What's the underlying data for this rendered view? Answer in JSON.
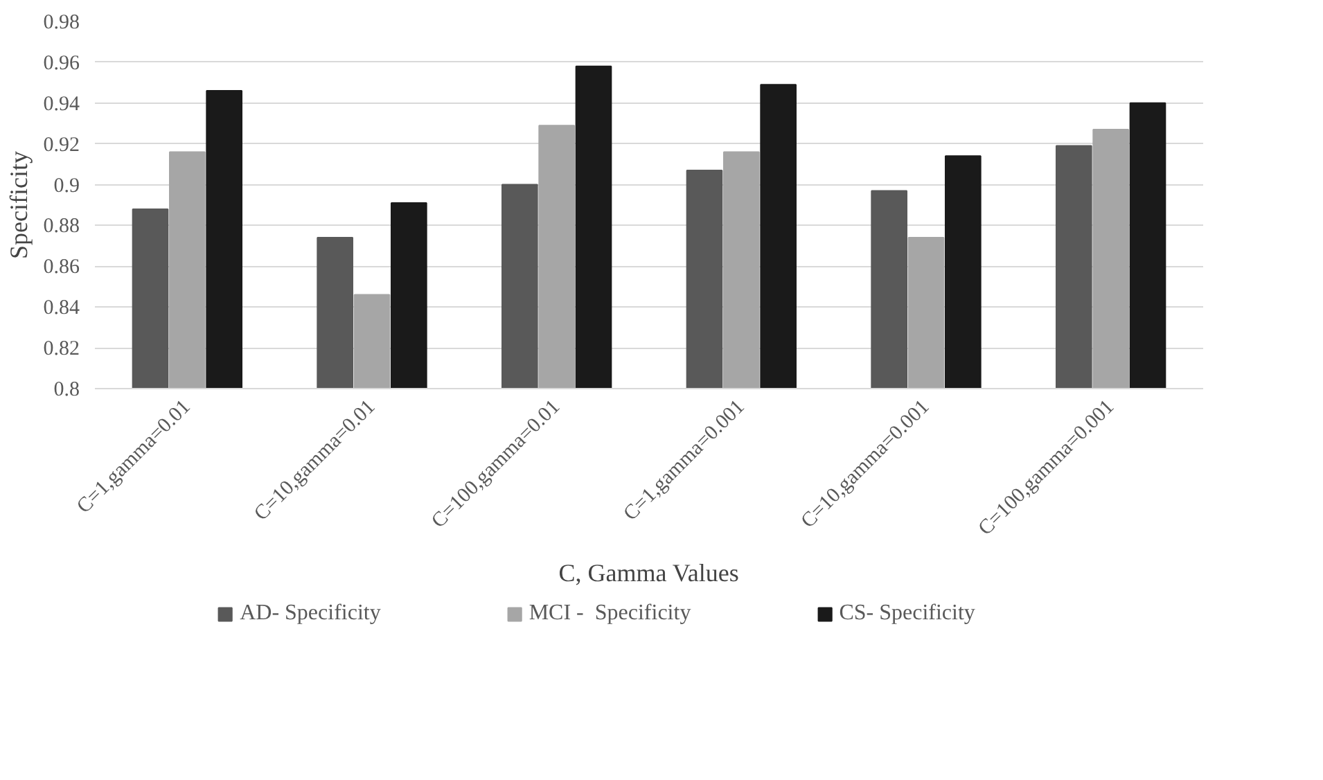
{
  "chart_data": {
    "type": "bar",
    "ylabel": "Specificity",
    "xlabel": "C, Gamma Values",
    "categories": [
      "C=1,gamma=0.01",
      "C=10,gamma=0.01",
      "C=100,gamma=0.01",
      "C=1,gamma=0.001",
      "C=10,gamma=0.001",
      "C=100,gamma=0.001"
    ],
    "series": [
      {
        "name": "AD- Specificity",
        "color": "#595959",
        "values": [
          0.888,
          0.874,
          0.9,
          0.907,
          0.897,
          0.919
        ]
      },
      {
        "name": "MCI -  Specificity",
        "color": "#a6a6a6",
        "values": [
          0.916,
          0.846,
          0.929,
          0.916,
          0.874,
          0.927
        ]
      },
      {
        "name": "CS- Specificity",
        "color": "#1a1a1a",
        "values": [
          0.946,
          0.891,
          0.958,
          0.949,
          0.914,
          0.94
        ]
      }
    ],
    "ylim": [
      0.8,
      0.98
    ],
    "yticks": [
      0.8,
      0.82,
      0.84,
      0.86,
      0.88,
      0.9,
      0.92,
      0.94,
      0.96,
      0.98
    ],
    "grid": "y",
    "legend": "bottom"
  }
}
